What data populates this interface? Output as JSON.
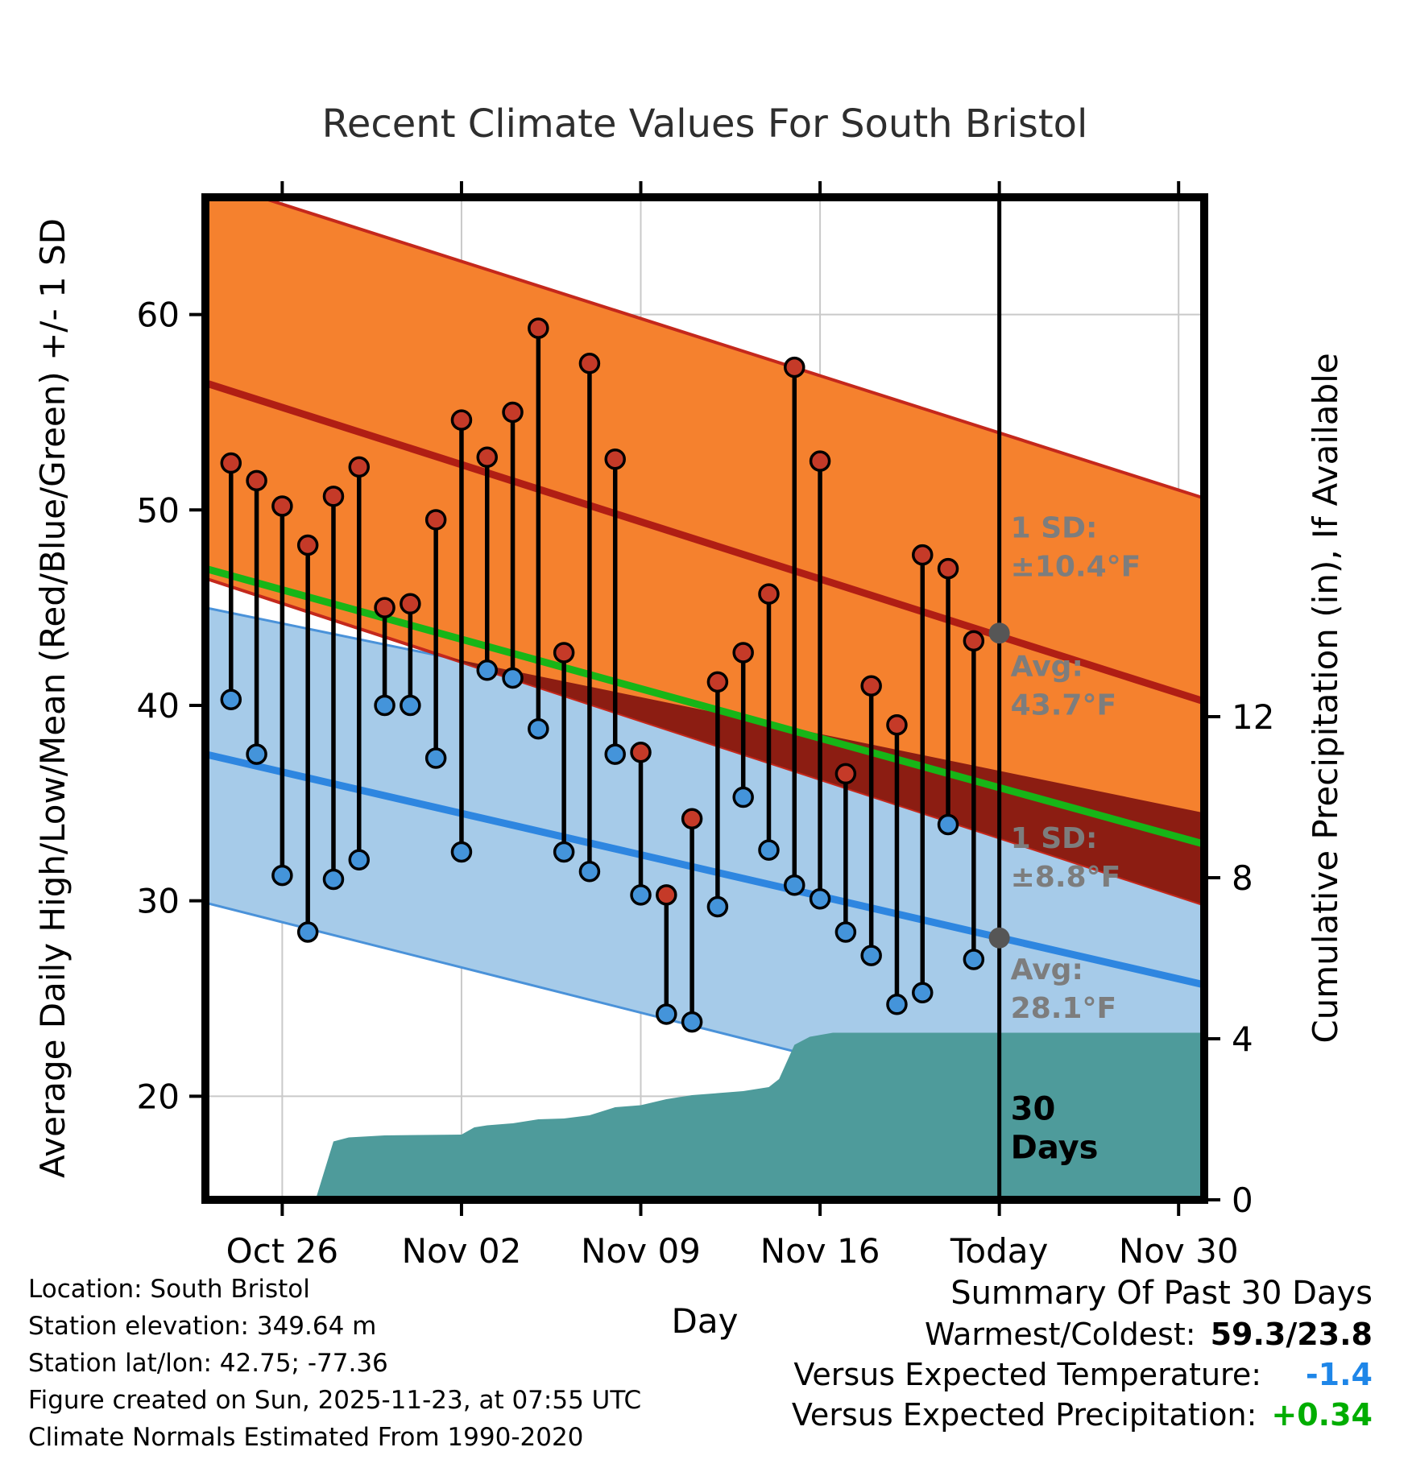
{
  "chart_data": {
    "type": "line",
    "title": "Recent Climate Values For South Bristol",
    "description": "Daily high/low temperature whiskers versus climate-normal bands (high/low/mean +/- 1 SD) with cumulative precipitation area",
    "axes": {
      "x_label": "Day",
      "y_left_label": "Average Daily High/Low/Mean (Red/Blue/Green) +/- 1 SD",
      "y_right_label": "Cumulative Precipitation (in), If Available",
      "x_ticks": [
        {
          "day": 3,
          "label": "Oct 26"
        },
        {
          "day": 10,
          "label": "Nov 02"
        },
        {
          "day": 17,
          "label": "Nov 09"
        },
        {
          "day": 24,
          "label": "Nov 16"
        },
        {
          "day": 31,
          "label": "Today"
        },
        {
          "day": 38,
          "label": "Nov 30"
        }
      ],
      "y_left_ticks": [
        20,
        30,
        40,
        50,
        60
      ],
      "y_right_ticks": [
        0,
        4,
        8,
        12
      ]
    },
    "x_unit": "days (0 = Oct 23)",
    "x_domain": [
      0,
      39
    ],
    "y_temp_domain": [
      14.7,
      66.0
    ],
    "today_day": 31,
    "daily": {
      "start_day_index": 1,
      "dates": [
        "Oct 24",
        "Oct 25",
        "Oct 26",
        "Oct 27",
        "Oct 28",
        "Oct 29",
        "Oct 30",
        "Oct 31",
        "Nov 01",
        "Nov 02",
        "Nov 03",
        "Nov 04",
        "Nov 05",
        "Nov 06",
        "Nov 07",
        "Nov 08",
        "Nov 09",
        "Nov 10",
        "Nov 11",
        "Nov 12",
        "Nov 13",
        "Nov 14",
        "Nov 15",
        "Nov 16",
        "Nov 17",
        "Nov 18",
        "Nov 19",
        "Nov 20",
        "Nov 21",
        "Nov 22"
      ],
      "high": [
        52.4,
        51.5,
        50.2,
        48.2,
        50.7,
        52.2,
        45.0,
        45.2,
        49.5,
        54.6,
        52.7,
        55.0,
        59.3,
        42.7,
        57.5,
        52.6,
        37.6,
        30.3,
        34.2,
        41.2,
        42.7,
        45.7,
        57.3,
        52.5,
        36.5,
        41.0,
        39.0,
        47.7,
        47.0,
        43.3
      ],
      "low": [
        40.3,
        37.5,
        31.3,
        28.4,
        31.1,
        32.1,
        40.0,
        40.0,
        37.3,
        32.5,
        41.8,
        41.4,
        38.8,
        32.5,
        31.5,
        37.5,
        30.3,
        24.2,
        23.8,
        29.7,
        35.3,
        32.6,
        30.8,
        30.1,
        28.4,
        27.2,
        24.7,
        25.3,
        33.9,
        27.0
      ]
    },
    "normals": {
      "high_avg": {
        "start": 56.5,
        "end": 40.2
      },
      "high_band_top": {
        "start": 66.9,
        "end": 50.6
      },
      "high_band_bottom": {
        "start": 46.5,
        "end": 29.8
      },
      "low_avg": {
        "start": 37.5,
        "end": 25.7
      },
      "low_band_top": {
        "start": 45.0,
        "end": 34.5
      },
      "low_band_bottom": {
        "start": 29.9,
        "end": 17.0
      },
      "mean_avg": {
        "start": 47.0,
        "end": 32.9
      },
      "high_sd_at_today": 10.4,
      "low_sd_at_today": 8.8,
      "high_avg_at_today": 43.7,
      "low_avg_at_today": 28.1
    },
    "precip_cumulative": {
      "x": [
        0,
        4.3,
        5.0,
        5.6,
        7.0,
        10.0,
        10.5,
        11.0,
        12.0,
        13.0,
        14.0,
        15.0,
        16.0,
        17.0,
        18.0,
        19.0,
        20.0,
        21.0,
        22.0,
        22.4,
        23.0,
        23.6,
        24.5,
        39.0
      ],
      "in": [
        0,
        0.0,
        1.45,
        1.55,
        1.6,
        1.62,
        1.8,
        1.85,
        1.9,
        2.0,
        2.02,
        2.1,
        2.3,
        2.35,
        2.5,
        2.6,
        2.65,
        2.7,
        2.8,
        3.0,
        3.85,
        4.05,
        4.15,
        4.15
      ]
    }
  },
  "annotations": {
    "high_sd": {
      "lines": [
        "1 SD:",
        "±10.4°F"
      ],
      "anchor_temp": 48.6
    },
    "high_avg": {
      "lines": [
        "Avg:",
        "43.7°F"
      ],
      "anchor_temp": 41.5,
      "dot_temp": 43.7
    },
    "low_sd": {
      "lines": [
        "1 SD:",
        "±8.8°F"
      ],
      "anchor_temp": 32.7
    },
    "low_avg": {
      "lines": [
        "Avg:",
        "28.1°F"
      ],
      "anchor_temp": 26.0,
      "dot_temp": 28.1
    },
    "today": {
      "lines": [
        "30",
        "Days"
      ],
      "anchor_temp": 18.8
    }
  },
  "footer_left": [
    "Location: South Bristol",
    "Station elevation: 349.64 m",
    "Station lat/lon: 42.75; -77.36",
    "Figure created on Sun, 2025-11-23, at 07:55 UTC",
    "Climate Normals Estimated From 1990-2020"
  ],
  "summary": {
    "title": "Summary Of Past 30 Days",
    "rows": [
      {
        "label": "Warmest/Coldest:",
        "value": "59.3/23.8",
        "color": "#000000"
      },
      {
        "label": "Versus Expected Temperature:",
        "value": "-1.4",
        "color": "#1E86E8"
      },
      {
        "label": "Versus Expected Precipitation:",
        "value": "+0.34",
        "color": "#00AD00"
      }
    ]
  },
  "colors": {
    "high_band_fill": "#F5812E",
    "high_band_edge": "#C4281C",
    "high_avg_line": "#B01E14",
    "overlap_fill": "#8C1D12",
    "low_band_fill": "#A6CBE9",
    "low_band_edge": "#4A92D9",
    "low_avg_line": "#2E86E0",
    "mean_line": "#17B517",
    "precip_fill": "#4E9B9B",
    "high_dot": "#C53A28",
    "low_dot": "#4494DA",
    "whisker": "#000000",
    "avg_dot": "#565656",
    "annotation_gray": "#7D7D7D",
    "gridline": "#C9C9C9",
    "today_line": "#000000"
  }
}
